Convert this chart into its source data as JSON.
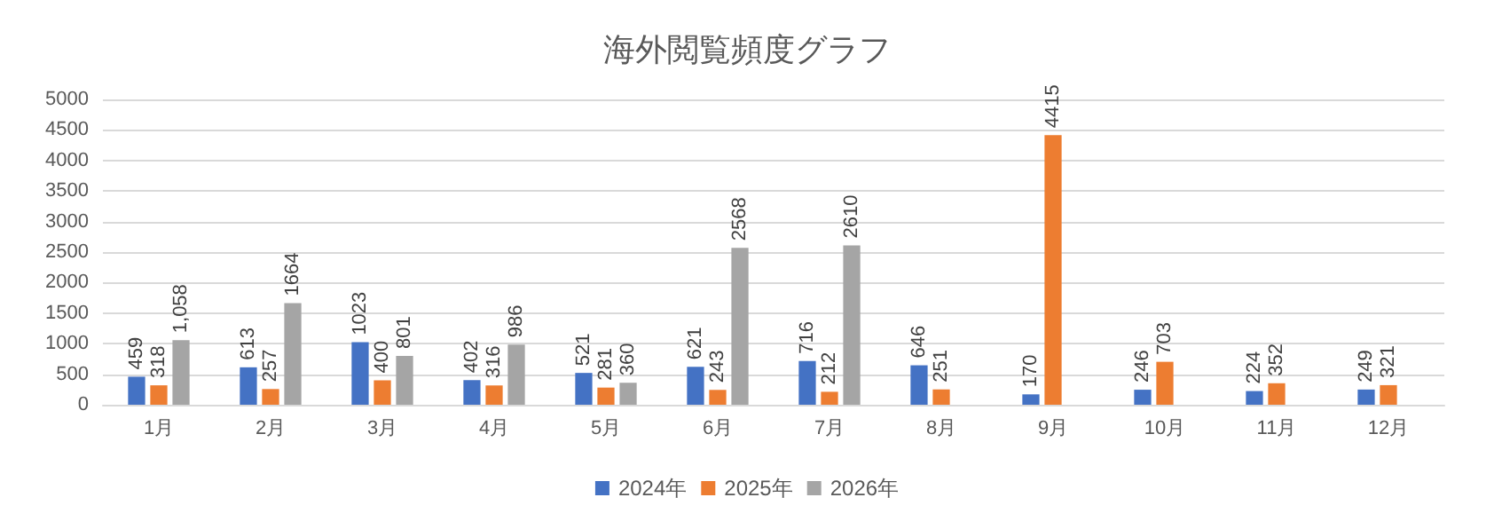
{
  "chart_data": {
    "type": "bar",
    "title": "海外閲覧頻度グラフ",
    "categories": [
      "1月",
      "2月",
      "3月",
      "4月",
      "5月",
      "6月",
      "7月",
      "8月",
      "9月",
      "10月",
      "11月",
      "12月"
    ],
    "series": [
      {
        "name": "2024年",
        "color": "#4472c4",
        "values": [
          459,
          613,
          1023,
          402,
          521,
          621,
          716,
          646,
          170,
          246,
          224,
          249
        ],
        "value_labels": [
          "459",
          "613",
          "1023",
          "402",
          "521",
          "621",
          "716",
          "646",
          "170",
          "246",
          "224",
          "249"
        ]
      },
      {
        "name": "2025年",
        "color": "#ed7d31",
        "values": [
          318,
          257,
          400,
          316,
          281,
          243,
          212,
          251,
          4415,
          703,
          352,
          321
        ],
        "value_labels": [
          "318",
          "257",
          "400",
          "316",
          "281",
          "243",
          "212",
          "251",
          "4415",
          "703",
          "352",
          "321"
        ]
      },
      {
        "name": "2026年",
        "color": "#a5a5a5",
        "values": [
          1058,
          1664,
          801,
          986,
          360,
          2568,
          2610,
          null,
          null,
          null,
          null,
          null
        ],
        "value_labels": [
          "1,058",
          "1664",
          "801",
          "986",
          "360",
          "2568",
          "2610",
          null,
          null,
          null,
          null,
          null
        ]
      }
    ],
    "ylim": [
      0,
      5000
    ],
    "yticks": [
      0,
      500,
      1000,
      1500,
      2000,
      2500,
      3000,
      3500,
      4000,
      4500,
      5000
    ],
    "grid": "y",
    "legend": "bottom"
  }
}
